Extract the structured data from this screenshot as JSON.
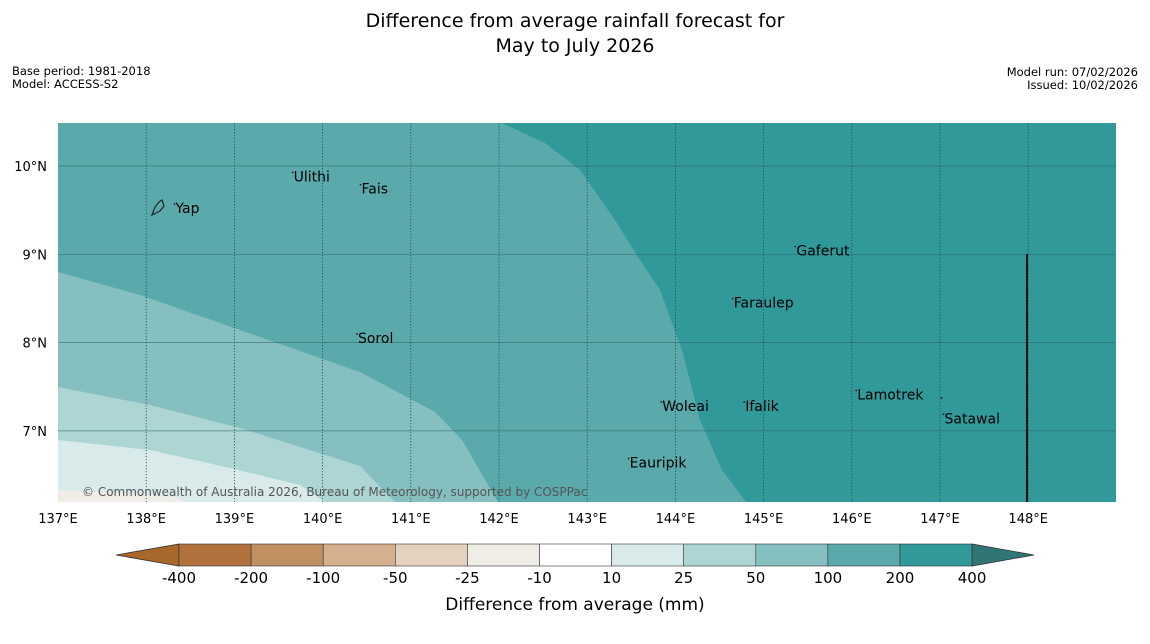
{
  "title": {
    "line1": "Difference from average rainfall forecast for",
    "line2": "May to July 2026"
  },
  "meta_left": {
    "base_period": "Base period: 1981-2018",
    "model": "Model: ACCESS-S2"
  },
  "meta_right": {
    "model_run": "Model run: 07/02/2026",
    "issued": "Issued: 10/02/2026"
  },
  "map": {
    "lon_ticks": [
      "137°E",
      "138°E",
      "139°E",
      "140°E",
      "141°E",
      "142°E",
      "143°E",
      "144°E",
      "145°E",
      "146°E",
      "147°E",
      "148°E"
    ],
    "lat_ticks": [
      "10°N",
      "9°N",
      "8°N",
      "7°N"
    ],
    "islands": [
      {
        "name": "Yap",
        "lon": 138.32,
        "lat": 9.5
      },
      {
        "name": "Ulithi",
        "lon": 139.66,
        "lat": 9.86
      },
      {
        "name": "Fais",
        "lon": 140.43,
        "lat": 9.72
      },
      {
        "name": "Gaferut",
        "lon": 145.36,
        "lat": 9.02
      },
      {
        "name": "Faraulep",
        "lon": 144.65,
        "lat": 8.43
      },
      {
        "name": "Sorol",
        "lon": 140.39,
        "lat": 8.03
      },
      {
        "name": "Woleai",
        "lon": 143.84,
        "lat": 7.26
      },
      {
        "name": "Ifalik",
        "lon": 144.78,
        "lat": 7.26
      },
      {
        "name": "Lamotrek",
        "lon": 146.05,
        "lat": 7.39
      },
      {
        "name": "Satawal",
        "lon": 147.04,
        "lat": 7.12
      },
      {
        "name": "Eauripik",
        "lon": 143.47,
        "lat": 6.62
      }
    ],
    "copyright": "© Commonwealth of Australia 2026, Bureau of Meteorology, supported by COSPPac"
  },
  "colorbar": {
    "labels": [
      "-400",
      "-200",
      "-100",
      "-50",
      "-25",
      "-10",
      "10",
      "25",
      "50",
      "100",
      "200",
      "400"
    ],
    "colors": [
      "#a9682b",
      "#b1723d",
      "#c08f62",
      "#d5b08e",
      "#e4d1c0",
      "#f0ece6",
      "#ffffff",
      "#d8ebea",
      "#acd5d4",
      "#86bfbf",
      "#5aaaab",
      "#32999a",
      "#2f7674"
    ],
    "title": "Difference from average (mm)"
  }
}
